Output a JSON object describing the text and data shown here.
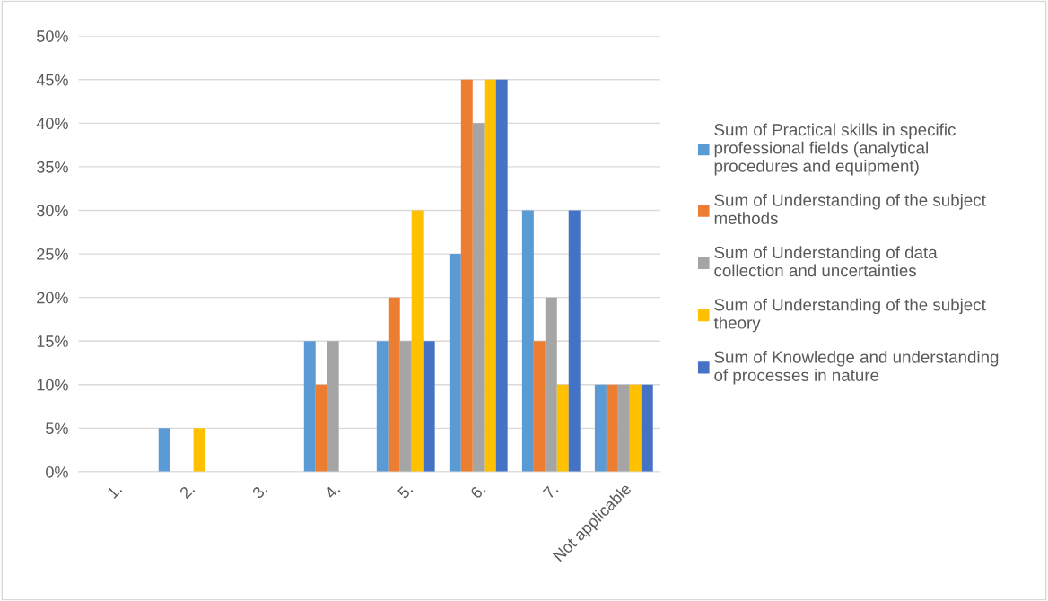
{
  "chart_data": {
    "type": "bar",
    "categories": [
      "1.",
      "2.",
      "3.",
      "4.",
      "5.",
      "6.",
      "7.",
      "Not applicable"
    ],
    "series": [
      {
        "name": "Sum of Practical skills in specific professional fields (analytical procedures and equipment)",
        "color": "#5b9bd5",
        "values": [
          0,
          5,
          0,
          15,
          15,
          25,
          30,
          10
        ]
      },
      {
        "name": "Sum of Understanding of the subject methods",
        "color": "#ed7d31",
        "values": [
          0,
          0,
          0,
          10,
          20,
          45,
          15,
          10
        ]
      },
      {
        "name": "Sum of Understanding of data collection and uncertainties",
        "color": "#a5a5a5",
        "values": [
          0,
          0,
          0,
          15,
          15,
          40,
          20,
          10
        ]
      },
      {
        "name": "Sum of Understanding of the subject theory",
        "color": "#ffc000",
        "values": [
          0,
          5,
          0,
          0,
          30,
          45,
          10,
          10
        ]
      },
      {
        "name": "Sum of Knowledge and understanding of processes in nature",
        "color": "#4472c4",
        "values": [
          0,
          0,
          0,
          0,
          15,
          45,
          30,
          10
        ]
      }
    ],
    "ylim": [
      0,
      50
    ],
    "yticks": [
      {
        "value": 0,
        "label": "0%"
      },
      {
        "value": 5,
        "label": "5%"
      },
      {
        "value": 10,
        "label": "10%"
      },
      {
        "value": 15,
        "label": "15%"
      },
      {
        "value": 20,
        "label": "20%"
      },
      {
        "value": 25,
        "label": "25%"
      },
      {
        "value": 30,
        "label": "30%"
      },
      {
        "value": 35,
        "label": "35%"
      },
      {
        "value": 40,
        "label": "40%"
      },
      {
        "value": 45,
        "label": "45%"
      },
      {
        "value": 50,
        "label": "50%"
      }
    ],
    "grid": "y",
    "legend": "right"
  }
}
